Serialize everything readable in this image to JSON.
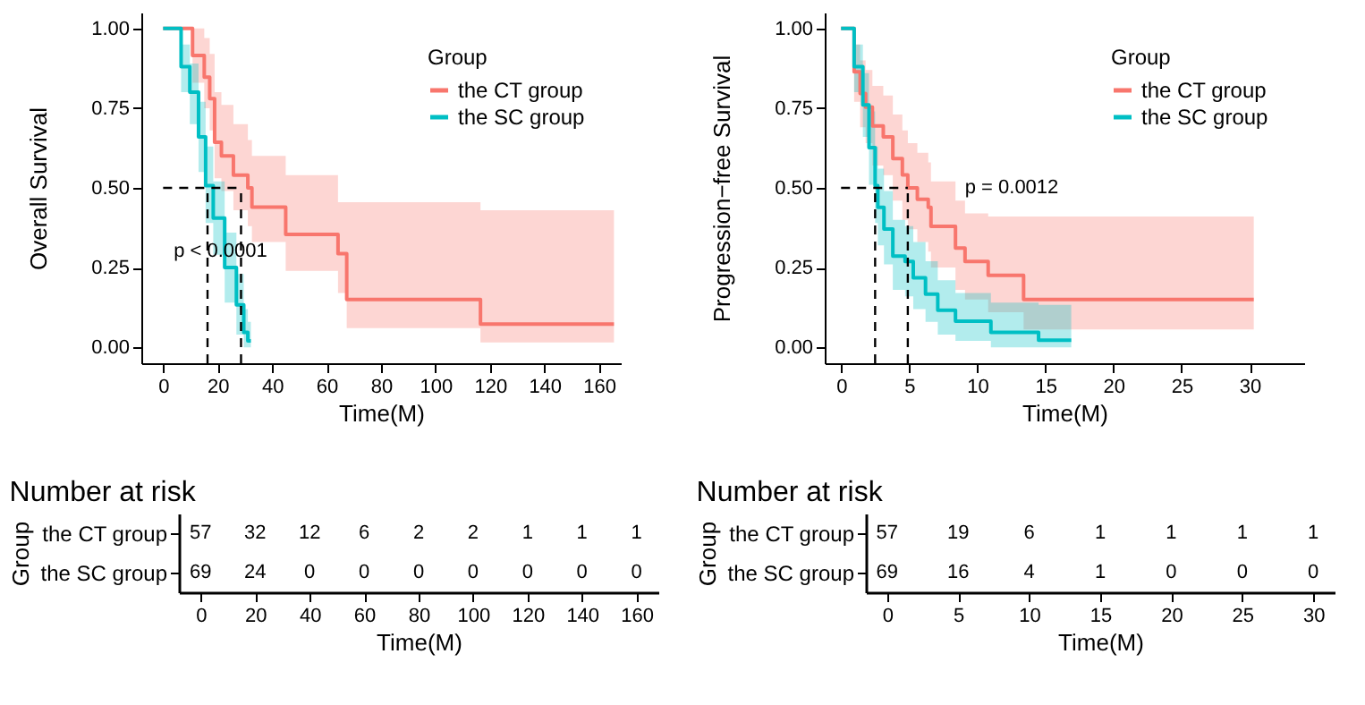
{
  "chart_data": [
    {
      "type": "step",
      "xlabel": "Time(M)",
      "ylabel": "Overall Survival",
      "legend_title": "Group",
      "legend": "top right",
      "line_style": "solid",
      "xlim": [
        -8,
        168
      ],
      "xticks": [
        0,
        20,
        40,
        60,
        80,
        100,
        120,
        140,
        160
      ],
      "ylim": [
        -0.05,
        1.05
      ],
      "yticks": [
        {
          "value": 0,
          "label": "0.00"
        },
        {
          "value": 0.25,
          "label": "0.25"
        },
        {
          "value": 0.5,
          "label": "0.50"
        },
        {
          "value": 0.75,
          "label": "0.75"
        },
        {
          "value": 1,
          "label": "1.00"
        }
      ],
      "series": [
        {
          "name": "the CT group",
          "color": "#f8766d",
          "x": [
            0,
            10.8,
            15.1,
            17.1,
            18.9,
            21.4,
            25.8,
            31.1,
            32.6,
            45,
            64.2,
            67.4,
            116.5,
            165.5
          ],
          "values": [
            1,
            0.915,
            0.847,
            0.78,
            0.643,
            0.6,
            0.54,
            0.5,
            0.44,
            0.354,
            0.294,
            0.15,
            0.073,
            0.073
          ],
          "upper": [
            1,
            1,
            0.97,
            0.92,
            0.8,
            0.76,
            0.7,
            0.65,
            0.6,
            0.54,
            0.455,
            0.455,
            0.43,
            0.43
          ],
          "lower": [
            1,
            0.83,
            0.75,
            0.68,
            0.53,
            0.49,
            0.43,
            0.38,
            0.33,
            0.24,
            0.17,
            0.06,
            0.015,
            0.015
          ]
        },
        {
          "name": "the SC group",
          "color": "#00bfc4",
          "x": [
            0,
            6.6,
            9.8,
            13,
            15.6,
            18.4,
            22.6,
            26.9,
            29.6,
            31.1,
            32.2
          ],
          "values": [
            1,
            0.88,
            0.8,
            0.66,
            0.507,
            0.405,
            0.25,
            0.133,
            0.047,
            0.02,
            0.02
          ],
          "upper": [
            1,
            0.95,
            0.89,
            0.77,
            0.63,
            0.52,
            0.36,
            0.23,
            0.12,
            0.08,
            0.08
          ],
          "lower": [
            1,
            0.8,
            0.7,
            0.55,
            0.39,
            0.29,
            0.14,
            0.04,
            0,
            0,
            0
          ]
        }
      ],
      "ref_lines": [
        {
          "axis": "y",
          "value": 0.5,
          "line_style": "dashed"
        },
        {
          "axis": "x",
          "value": 16.3,
          "line_style": "dashed"
        },
        {
          "axis": "x",
          "value": 28.6,
          "line_style": "dashed"
        }
      ],
      "annotations": [
        "p < 0.0001"
      ]
    },
    {
      "type": "step",
      "xlabel": "Time(M)",
      "ylabel": "Progression−free Survival",
      "legend_title": "Group",
      "legend": "top right",
      "line_style": "solid",
      "xlim": [
        -1.2,
        34
      ],
      "xticks": [
        0,
        5,
        10,
        15,
        20,
        25,
        30
      ],
      "ylim": [
        -0.05,
        1.05
      ],
      "yticks": [
        {
          "value": 0,
          "label": "0.00"
        },
        {
          "value": 0.25,
          "label": "0.25"
        },
        {
          "value": 0.5,
          "label": "0.50"
        },
        {
          "value": 0.75,
          "label": "0.75"
        },
        {
          "value": 1,
          "label": "1.00"
        }
      ],
      "series": [
        {
          "name": "the CT group",
          "color": "#f8766d",
          "x": [
            0,
            0.96,
            1.4,
            1.8,
            2.3,
            3.1,
            3.8,
            4.5,
            4.9,
            5.6,
            6.4,
            6.6,
            8.4,
            9.1,
            10.8,
            13.4,
            30.3
          ],
          "values": [
            1,
            0.864,
            0.796,
            0.753,
            0.694,
            0.66,
            0.592,
            0.541,
            0.5,
            0.464,
            0.439,
            0.379,
            0.311,
            0.269,
            0.226,
            0.15,
            0.15
          ],
          "upper": [
            1,
            0.95,
            0.9,
            0.87,
            0.82,
            0.79,
            0.73,
            0.68,
            0.64,
            0.61,
            0.58,
            0.52,
            0.46,
            0.42,
            0.41,
            0.41,
            0.41
          ],
          "lower": [
            1,
            0.77,
            0.69,
            0.64,
            0.57,
            0.54,
            0.46,
            0.4,
            0.37,
            0.33,
            0.3,
            0.25,
            0.18,
            0.15,
            0.11,
            0.056,
            0.056
          ]
        },
        {
          "name": "the SC group",
          "color": "#00bfc4",
          "x": [
            0,
            0.96,
            1.6,
            2.05,
            2.5,
            2.7,
            3.15,
            3.8,
            4.7,
            5.3,
            6.2,
            7.1,
            8.4,
            11,
            14.5,
            16.9
          ],
          "values": [
            1,
            0.88,
            0.76,
            0.626,
            0.507,
            0.439,
            0.371,
            0.286,
            0.269,
            0.218,
            0.167,
            0.116,
            0.082,
            0.047,
            0.022,
            0.022
          ],
          "upper": [
            1,
            0.95,
            0.86,
            0.74,
            0.63,
            0.56,
            0.49,
            0.4,
            0.38,
            0.33,
            0.27,
            0.21,
            0.17,
            0.14,
            0.133,
            0.133
          ],
          "lower": [
            1,
            0.8,
            0.66,
            0.51,
            0.39,
            0.32,
            0.26,
            0.18,
            0.16,
            0.12,
            0.08,
            0.04,
            0.02,
            0,
            0,
            0
          ]
        }
      ],
      "ref_lines": [
        {
          "axis": "y",
          "value": 0.5,
          "line_style": "dashed"
        },
        {
          "axis": "x",
          "value": 2.5,
          "line_style": "dashed"
        },
        {
          "axis": "x",
          "value": 4.9,
          "line_style": "dashed"
        }
      ],
      "annotations": [
        "p = 0.0012"
      ]
    },
    {
      "type": "heatmap",
      "title": "Number at risk",
      "xlabel": "Time(M)",
      "ylabel": "Group",
      "categories": [
        "0",
        "20",
        "40",
        "60",
        "80",
        "100",
        "120",
        "140",
        "160"
      ],
      "y_categories": [
        "the CT group",
        "the SC group"
      ],
      "cells": [
        [
          57,
          32,
          12,
          6,
          2,
          2,
          1,
          1,
          1
        ],
        [
          69,
          24,
          0,
          0,
          0,
          0,
          0,
          0,
          0
        ]
      ],
      "data_labels": true
    },
    {
      "type": "heatmap",
      "title": "Number at risk",
      "xlabel": "Time(M)",
      "ylabel": "Group",
      "categories": [
        "0",
        "5",
        "10",
        "15",
        "20",
        "25",
        "30"
      ],
      "y_categories": [
        "the CT group",
        "the SC group"
      ],
      "cells": [
        [
          57,
          19,
          6,
          1,
          1,
          1,
          1
        ],
        [
          69,
          16,
          4,
          1,
          0,
          0,
          0
        ]
      ],
      "data_labels": true
    }
  ]
}
